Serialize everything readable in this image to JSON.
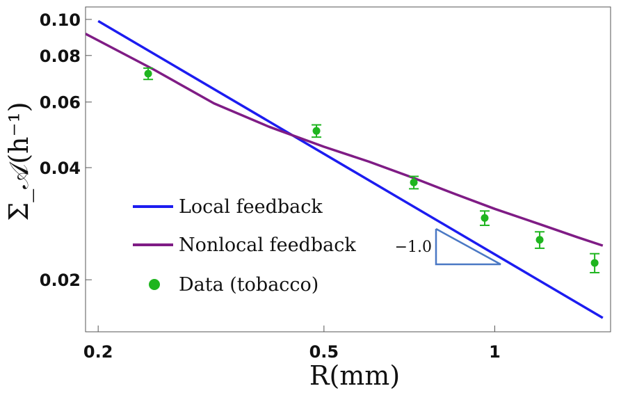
{
  "chart_data": {
    "type": "line",
    "x_scale": "log",
    "y_scale": "log",
    "xlabel": "R(mm)",
    "ylabel": "Σ_𝒜(h⁻¹)",
    "xlim": [
      0.19,
      1.6
    ],
    "ylim": [
      0.0145,
      0.108
    ],
    "x_ticks": [
      {
        "value": 0.2,
        "label": "0.2"
      },
      {
        "value": 0.5,
        "label": "0.5"
      },
      {
        "value": 1,
        "label": "1"
      }
    ],
    "y_ticks": [
      {
        "value": 0.02,
        "label": "0.02"
      },
      {
        "value": 0.04,
        "label": "0.04"
      },
      {
        "value": 0.06,
        "label": "0.06"
      },
      {
        "value": 0.08,
        "label": "0.08"
      },
      {
        "value": 0.1,
        "label": "0.10"
      }
    ],
    "series": [
      {
        "name": "Local feedback",
        "kind": "line",
        "color": "#1c1cf0",
        "x": [
          0.2,
          1.55
        ],
        "y": [
          0.099,
          0.0158
        ]
      },
      {
        "name": "Nonlocal feedback",
        "kind": "line",
        "color": "#7f1c85",
        "x": [
          0.19,
          0.25,
          0.32,
          0.4,
          0.5,
          0.6,
          0.72,
          0.85,
          1.0,
          1.2,
          1.4,
          1.55
        ],
        "y": [
          0.0915,
          0.0735,
          0.0595,
          0.0515,
          0.0455,
          0.0415,
          0.0375,
          0.034,
          0.031,
          0.0282,
          0.026,
          0.0247
        ]
      },
      {
        "name": "Data (tobacco)",
        "kind": "scatter",
        "color": "#1fb51f",
        "x": [
          0.245,
          0.485,
          0.72,
          0.96,
          1.2,
          1.5
        ],
        "y": [
          0.0715,
          0.0502,
          0.0365,
          0.0293,
          0.0256,
          0.0222
        ],
        "err": [
          0.0025,
          0.0019,
          0.0014,
          0.0013,
          0.0013,
          0.0013
        ]
      }
    ],
    "legend": {
      "placement": "lower-left",
      "entries": [
        "Local feedback",
        "Nonlocal feedback",
        "Data (tobacco)"
      ]
    },
    "annotations": [
      {
        "type": "slope-triangle",
        "label": "−1.0",
        "color": "#4a78c4"
      }
    ]
  }
}
